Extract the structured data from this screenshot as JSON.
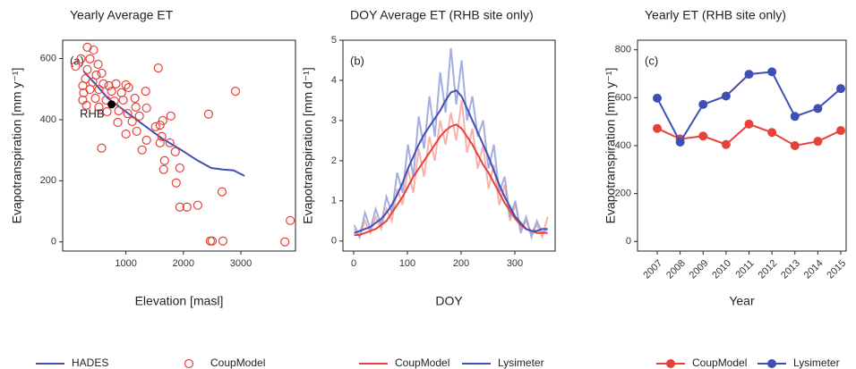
{
  "chart_data": [
    {
      "type": "scatter",
      "title": "Yearly Average ET",
      "panel_label": "(a)",
      "x_label": "Elevation [masl]",
      "y_label": "Evapotranspiration [mm y⁻¹]",
      "xlim": [
        -100,
        3950
      ],
      "xticks": [
        1000,
        2000,
        3000
      ],
      "ylim": [
        -30,
        660
      ],
      "yticks": [
        0,
        200,
        400,
        600
      ],
      "series": [
        {
          "name": "HADES",
          "kind": "line",
          "color": "#3f4fb5",
          "x": [
            266,
            453,
            688,
            1000,
            1313,
            1625,
            1938,
            2250,
            2484,
            2688,
            2875,
            3063
          ],
          "y": [
            558,
            520,
            470,
            426,
            382,
            339,
            304,
            266,
            242,
            237,
            234,
            216
          ]
        },
        {
          "name": "CoupModel",
          "kind": "scatter",
          "color": "#e8403a",
          "x": [
            125,
            219,
            328,
            375,
            438,
            328,
            297,
            250,
            266,
            250,
            313,
            375,
            422,
            484,
            469,
            531,
            516,
            578,
            531,
            609,
            656,
            703,
            672,
            750,
            797,
            828,
            875,
            922,
            953,
            1000,
            1031,
            1000,
            578,
            859,
            1109,
            1047,
            1156,
            1172,
            1234,
            1359,
            1344,
            1188,
            1281,
            1359,
            1516,
            1563,
            1594,
            1641,
            1625,
            1594,
            1672,
            1656,
            1781,
            1766,
            1859,
            1875,
            1938,
            1938,
            2063,
            2250,
            2438,
            2469,
            2500,
            2688,
            2672,
            2906,
            3766,
            3859
          ],
          "y": [
            575,
            599,
            637,
            599,
            628,
            564,
            534,
            511,
            488,
            464,
            447,
            499,
            523,
            546,
            470,
            499,
            581,
            552,
            441,
            517,
            464,
            511,
            426,
            493,
            461,
            517,
            429,
            488,
            464,
            514,
            420,
            353,
            307,
            391,
            394,
            505,
            470,
            441,
            412,
            438,
            493,
            362,
            301,
            333,
            377,
            569,
            382,
            397,
            345,
            324,
            266,
            237,
            412,
            324,
            295,
            193,
            242,
            114,
            114,
            120,
            418,
            3,
            3,
            3,
            164,
            493,
            0,
            70
          ]
        }
      ],
      "annotations": [
        {
          "text": "RHB",
          "x": 750,
          "y": 450,
          "color": "#000000"
        }
      ],
      "legend": "bottom"
    },
    {
      "type": "line",
      "title": "DOY Average ET (RHB site only)",
      "panel_label": "(b)",
      "x_label": "DOY",
      "y_label": "Evapotranspiration [mm d⁻¹]",
      "xlim": [
        -20,
        375
      ],
      "xticks": [
        0,
        100,
        200,
        300
      ],
      "ylim": [
        -0.25,
        5
      ],
      "yticks": [
        0,
        1,
        2,
        3,
        4,
        5
      ],
      "x": [
        1,
        11,
        21,
        31,
        41,
        51,
        61,
        71,
        81,
        91,
        101,
        111,
        121,
        131,
        141,
        151,
        161,
        171,
        181,
        191,
        201,
        211,
        221,
        231,
        241,
        251,
        261,
        271,
        281,
        291,
        301,
        311,
        321,
        331,
        341,
        351,
        361
      ],
      "series": [
        {
          "name": "CoupModel",
          "color": "#e8403a",
          "daily_color": "#f4a09a",
          "values": [
            0.15,
            0.15,
            0.2,
            0.25,
            0.3,
            0.4,
            0.5,
            0.7,
            0.9,
            1.1,
            1.35,
            1.6,
            1.8,
            2.0,
            2.2,
            2.4,
            2.6,
            2.75,
            2.85,
            2.9,
            2.8,
            2.6,
            2.4,
            2.15,
            1.9,
            1.7,
            1.45,
            1.2,
            0.95,
            0.75,
            0.55,
            0.4,
            0.3,
            0.25,
            0.2,
            0.2,
            0.2
          ],
          "daily": [
            0.3,
            0.1,
            0.5,
            0.2,
            0.6,
            0.3,
            0.8,
            0.5,
            1.3,
            0.9,
            1.8,
            1.2,
            2.3,
            1.6,
            2.6,
            2.0,
            3.0,
            2.4,
            3.2,
            2.5,
            3.5,
            2.2,
            2.8,
            1.8,
            2.4,
            1.3,
            1.9,
            0.9,
            1.4,
            0.5,
            0.9,
            0.3,
            0.5,
            0.2,
            0.4,
            0.1,
            0.6
          ]
        },
        {
          "name": "Lysimeter",
          "color": "#3f4fb5",
          "daily_color": "#8f9ad6",
          "values": [
            0.2,
            0.25,
            0.3,
            0.35,
            0.45,
            0.55,
            0.7,
            0.9,
            1.15,
            1.45,
            1.8,
            2.1,
            2.4,
            2.65,
            2.85,
            3.05,
            3.25,
            3.5,
            3.7,
            3.75,
            3.6,
            3.3,
            3.0,
            2.7,
            2.4,
            2.1,
            1.75,
            1.4,
            1.1,
            0.85,
            0.6,
            0.45,
            0.3,
            0.25,
            0.25,
            0.3,
            0.3
          ],
          "daily": [
            0.4,
            0.1,
            0.7,
            0.3,
            0.8,
            0.4,
            1.1,
            0.7,
            1.7,
            1.2,
            2.4,
            1.6,
            3.1,
            2.3,
            3.6,
            2.6,
            4.2,
            3.2,
            4.8,
            3.4,
            4.5,
            3.0,
            3.6,
            2.6,
            3.0,
            1.8,
            2.4,
            1.2,
            1.6,
            0.6,
            1.0,
            0.2,
            0.6,
            0.1,
            0.5,
            0.2,
            0.3
          ]
        }
      ],
      "legend": "bottom"
    },
    {
      "type": "line",
      "title": "Yearly ET (RHB site only)",
      "panel_label": "(c)",
      "x_label": "Year",
      "y_label": "Evapotranspiration [mm y⁻¹]",
      "categories": [
        "2007",
        "2008",
        "2009",
        "2010",
        "2011",
        "2012",
        "2013",
        "2014",
        "2015"
      ],
      "ylim": [
        -40,
        840
      ],
      "yticks": [
        0,
        200,
        400,
        600,
        800
      ],
      "markers": true,
      "series": [
        {
          "name": "CoupModel",
          "color": "#e8403a",
          "values": [
            472,
            428,
            440,
            405,
            490,
            455,
            400,
            418,
            463
          ]
        },
        {
          "name": "Lysimeter",
          "color": "#3f4fb5",
          "values": [
            598,
            415,
            572,
            607,
            698,
            708,
            522,
            555,
            638
          ]
        }
      ],
      "legend": "bottom"
    }
  ]
}
